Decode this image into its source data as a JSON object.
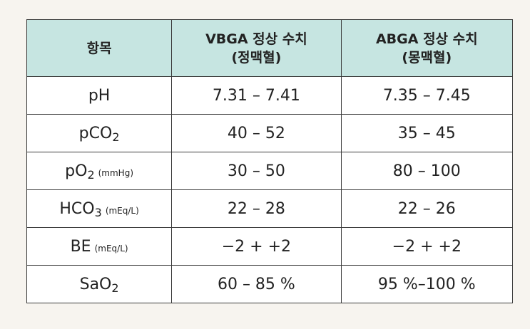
{
  "table": {
    "header": [
      "항목",
      "VBGA 정상 수치",
      "(정맥혈)",
      "ABGA 정상 수치",
      "(몽맥혈)"
    ],
    "rows": [
      {
        "item": "pH",
        "vbga": "7.31 – 7.41",
        "abga": "7.35 – 7.45"
      },
      {
        "item": "pCO",
        "item_sub": "2",
        "vbga": "40 – 52",
        "abga": "35 – 45"
      },
      {
        "item": "pO",
        "item_sub": "2",
        "item_unit": "(mmHg)",
        "vbga": "30 – 50",
        "abga": "80 – 100"
      },
      {
        "item": "HCO",
        "item_sub": "3",
        "item_unit": "(mEq/L)",
        "vbga": "22 – 28",
        "abga": "22 – 26"
      },
      {
        "item": "BE",
        "item_unit": "(mEq/L)",
        "vbga": "−2 + +2",
        "abga": "−2 + +2"
      },
      {
        "item": "SaO",
        "item_sub": "2",
        "vbga": "60 – 85 %",
        "abga": "95 %–100 %"
      }
    ]
  }
}
